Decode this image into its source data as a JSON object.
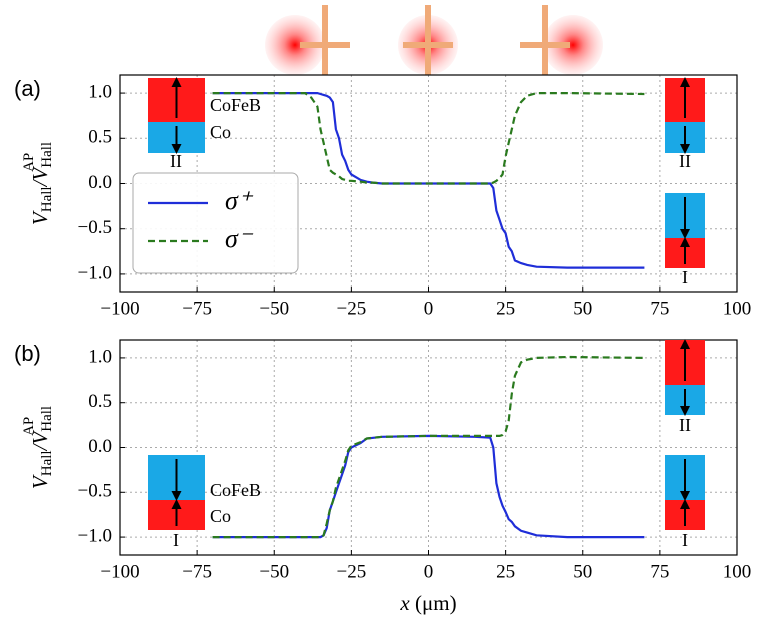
{
  "chart_data": [
    {
      "type": "line",
      "panel_label": "(a)",
      "ylabel": [
        "V",
        "Hall",
        "/V",
        "Hall",
        "AP"
      ],
      "x": [
        -70,
        -40,
        -38,
        -36,
        -35,
        -34,
        -33,
        -32,
        -31,
        -30,
        -29,
        -28,
        -27,
        -26,
        -25,
        -22,
        -20,
        -18,
        -15,
        0,
        15,
        20,
        21,
        22,
        23,
        24,
        25,
        26,
        27,
        28,
        30,
        32,
        35,
        45,
        70
      ],
      "series": [
        {
          "name": "σ⁺",
          "color": "#1f2ed8",
          "dash": false,
          "values": [
            1,
            1,
            1,
            1,
            0.99,
            0.98,
            0.97,
            0.95,
            0.9,
            0.6,
            0.5,
            0.32,
            0.25,
            0.15,
            0.1,
            0.04,
            0.02,
            0.01,
            0,
            0,
            0,
            0,
            -0.05,
            -0.3,
            -0.4,
            -0.5,
            -0.55,
            -0.7,
            -0.75,
            -0.85,
            -0.88,
            -0.9,
            -0.92,
            -0.93,
            -0.93
          ]
        },
        {
          "name": "σ⁻",
          "color": "#2a7a1e",
          "dash": true,
          "values": [
            1,
            1,
            0.95,
            0.85,
            0.6,
            0.45,
            0.3,
            0.15,
            0.12,
            0.1,
            0.08,
            0.05,
            0.04,
            0.03,
            0.03,
            0.02,
            0.01,
            0.01,
            0,
            0,
            0,
            0,
            0.01,
            0.03,
            0.06,
            0.1,
            0.3,
            0.45,
            0.6,
            0.75,
            0.9,
            0.97,
            1,
            1,
            0.99
          ]
        }
      ],
      "xlim": [
        -100,
        100
      ],
      "xticks": [
        {
          "value": -100,
          "label": "−100"
        },
        {
          "value": -75,
          "label": "−75"
        },
        {
          "value": -50,
          "label": "−50"
        },
        {
          "value": -25,
          "label": "−25"
        },
        0,
        25,
        50,
        75,
        100
      ],
      "ylim": [
        -1.2,
        1.2
      ],
      "yticks": [
        {
          "value": 1,
          "label": "1.0"
        },
        {
          "value": 0.5,
          "label": "0.5"
        },
        {
          "value": 0,
          "label": "0.0"
        },
        {
          "value": -0.5,
          "label": "−0.5"
        },
        {
          "value": -1,
          "label": "−1.0"
        }
      ],
      "grid": true,
      "legend": "center-left",
      "annotations": [
        "CoFeB",
        "Co",
        "II",
        "II",
        "I"
      ]
    },
    {
      "type": "line",
      "panel_label": "(b)",
      "ylabel": [
        "V",
        "Hall",
        "/V",
        "Hall",
        "AP"
      ],
      "xlabel": [
        "x",
        " (μm)"
      ],
      "x": [
        -70,
        -35,
        -34,
        -33,
        -32,
        -31,
        -30,
        -29,
        -28,
        -27,
        -26,
        -25,
        -22,
        -20,
        -15,
        0,
        15,
        20,
        21,
        22,
        23,
        24,
        25,
        26,
        27,
        28,
        30,
        32,
        35,
        45,
        70
      ],
      "series": [
        {
          "color": "#1f2ed8",
          "dash": false,
          "values": [
            -1,
            -1,
            -0.98,
            -0.9,
            -0.7,
            -0.6,
            -0.5,
            -0.4,
            -0.3,
            -0.2,
            -0.05,
            0,
            0.05,
            0.1,
            0.12,
            0.13,
            0.12,
            0.11,
            0,
            -0.4,
            -0.55,
            -0.65,
            -0.72,
            -0.8,
            -0.83,
            -0.88,
            -0.93,
            -0.95,
            -0.98,
            -1,
            -1
          ]
        },
        {
          "color": "#2a7a1e",
          "dash": true,
          "values": [
            -1,
            -1,
            -0.98,
            -0.85,
            -0.7,
            -0.6,
            -0.45,
            -0.35,
            -0.25,
            -0.15,
            -0.03,
            0.02,
            0.06,
            0.1,
            0.12,
            0.13,
            0.13,
            0.13,
            0.13,
            0.13,
            0.13,
            0.14,
            0.18,
            0.3,
            0.6,
            0.8,
            0.95,
            0.98,
            1,
            1.01,
            1
          ]
        }
      ],
      "xlim": [
        -100,
        100
      ],
      "xticks": [
        {
          "value": -100,
          "label": "−100"
        },
        {
          "value": -75,
          "label": "−75"
        },
        {
          "value": -50,
          "label": "−50"
        },
        {
          "value": -25,
          "label": "−25"
        },
        0,
        25,
        50,
        75,
        100
      ],
      "ylim": [
        -1.2,
        1.2
      ],
      "yticks": [
        {
          "value": 1,
          "label": "1.0"
        },
        {
          "value": 0.5,
          "label": "0.5"
        },
        {
          "value": 0,
          "label": "0.0"
        },
        {
          "value": -0.5,
          "label": "−0.5"
        },
        {
          "value": -1,
          "label": "−1.0"
        }
      ],
      "grid": true,
      "annotations": [
        "CoFeB",
        "Co",
        "I",
        "II",
        "I"
      ]
    }
  ]
}
